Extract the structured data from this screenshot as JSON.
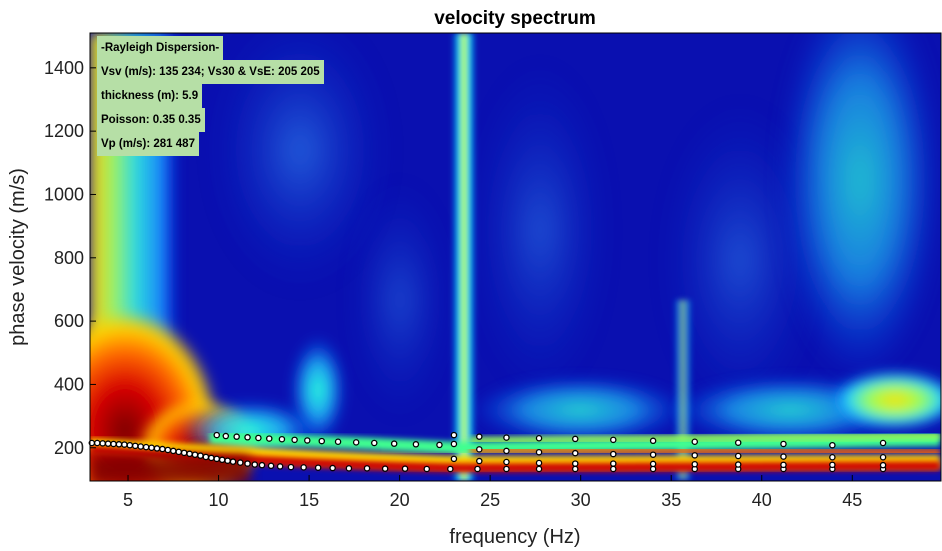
{
  "chart_data": {
    "type": "heatmap",
    "title": "velocity spectrum",
    "xlabel": "frequency (Hz)",
    "ylabel": "phase velocity (m/s)",
    "xlim": [
      2.9,
      49.9
    ],
    "ylim": [
      95,
      1510
    ],
    "xticks": [
      5,
      10,
      15,
      20,
      25,
      30,
      35,
      40,
      45
    ],
    "yticks": [
      200,
      400,
      600,
      800,
      1000,
      1200,
      1400
    ],
    "colormap": "jet",
    "annotation": [
      "-Rayleigh Dispersion-",
      "Vsv (m/s): 135  234; Vs30 & VsE: 205  205",
      "thickness (m): 5.9",
      "Poisson: 0.35  0.35",
      "Vp (m/s): 281  487"
    ],
    "series": [
      {
        "style": "markers",
        "x": [
          3.0,
          3.3,
          3.6,
          3.9,
          4.2,
          4.5,
          4.8,
          5.1,
          5.4,
          5.7,
          6.0,
          6.3,
          6.6,
          6.9,
          7.2,
          7.5,
          7.8,
          8.1,
          8.4,
          8.7,
          9.0,
          9.3,
          9.6,
          9.9,
          10.2,
          10.5,
          10.8,
          11.2,
          11.6,
          12.0,
          12.4,
          12.9,
          13.4,
          14.0,
          14.7,
          15.5,
          16.3,
          17.2,
          18.2,
          19.2,
          20.3,
          21.5,
          22.8,
          24.3,
          25.9,
          27.7,
          29.7,
          31.8,
          34.0,
          36.3,
          38.7,
          41.2,
          43.9,
          46.7
        ],
        "y": [
          215,
          215,
          214,
          213,
          212,
          211,
          210,
          208,
          206,
          204,
          202,
          200,
          198,
          196,
          193,
          190,
          187,
          184,
          181,
          178,
          175,
          171,
          168,
          165,
          162,
          159,
          156,
          153,
          150,
          147,
          145,
          143,
          141,
          139,
          138,
          137,
          136,
          135,
          135,
          134,
          134,
          133,
          133,
          133,
          133,
          133,
          133,
          133,
          133,
          133,
          133,
          133,
          133,
          133
        ]
      },
      {
        "style": "markers",
        "x": [
          9.9,
          10.4,
          11.0,
          11.6,
          12.2,
          12.8,
          13.5,
          14.2,
          14.9,
          15.7,
          16.6,
          17.6,
          18.6,
          19.7,
          20.9,
          22.2,
          23.0,
          24.4,
          25.9,
          27.7,
          29.7,
          31.8,
          34.0,
          36.3,
          38.7,
          41.2,
          43.9,
          46.7
        ],
        "y": [
          240,
          237,
          235,
          233,
          231,
          229,
          227,
          225,
          223,
          221,
          219,
          217,
          215,
          213,
          211,
          209,
          240,
          235,
          232,
          230,
          228,
          225,
          222,
          219,
          216,
          212,
          208,
          215
        ]
      },
      {
        "style": "markers",
        "x": [
          23.0,
          24.4,
          25.9,
          27.7,
          29.7,
          31.8,
          34.0,
          36.3,
          38.7,
          41.2,
          43.9,
          46.7
        ],
        "y": [
          212,
          195,
          190,
          186,
          183,
          180,
          178,
          176,
          174,
          172,
          170,
          170
        ]
      },
      {
        "style": "markers",
        "x": [
          23.0,
          24.4,
          25.9,
          27.7,
          29.7,
          31.8,
          34.0,
          36.3,
          38.7,
          41.2,
          43.9,
          46.7
        ],
        "y": [
          165,
          158,
          155,
          152,
          150,
          150,
          149,
          148,
          147,
          146,
          146,
          145
        ]
      }
    ]
  }
}
